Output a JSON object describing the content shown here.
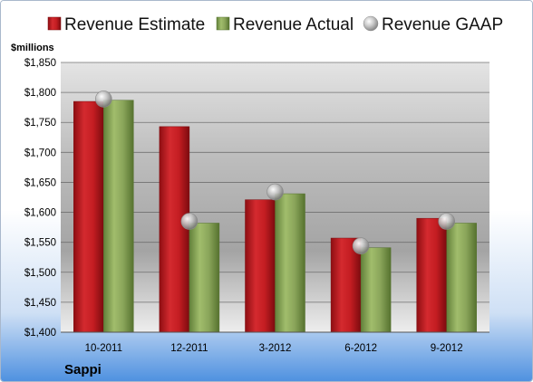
{
  "chart_data": {
    "type": "bar",
    "title": "",
    "company": "Sappi",
    "ylabel": "$millions",
    "xlabel": "",
    "categories": [
      "10-2011",
      "12-2011",
      "3-2012",
      "6-2012",
      "9-2012"
    ],
    "ylim": [
      1400,
      1850
    ],
    "yticks": [
      1400,
      1450,
      1500,
      1550,
      1600,
      1650,
      1700,
      1750,
      1800,
      1850
    ],
    "ytick_labels": [
      "$1,400",
      "$1,450",
      "$1,500",
      "$1,550",
      "$1,600",
      "$1,650",
      "$1,700",
      "$1,750",
      "$1,800",
      "$1,850"
    ],
    "grid": true,
    "legend_position": "top",
    "series": [
      {
        "name": "Revenue Estimate",
        "kind": "bar",
        "color": "#c0171c",
        "values": [
          1785,
          1743,
          1621,
          1557,
          1590
        ]
      },
      {
        "name": "Revenue Actual",
        "kind": "bar",
        "color": "#8aa55a",
        "values": [
          1787,
          1582,
          1631,
          1541,
          1582
        ]
      },
      {
        "name": "Revenue GAAP",
        "kind": "marker",
        "color": "#b5b5b5",
        "values": [
          1789,
          1585,
          1634,
          1544,
          1585
        ]
      }
    ]
  }
}
